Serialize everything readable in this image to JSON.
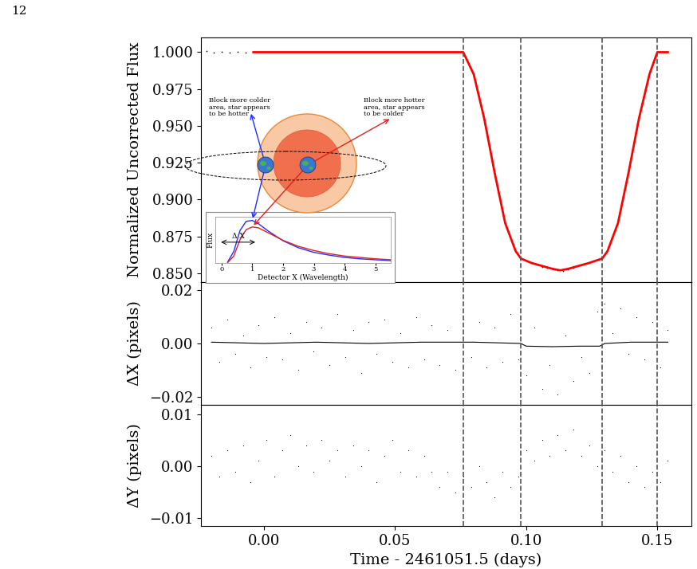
{
  "page_number": "12",
  "chart_data": [
    {
      "type": "line",
      "y_label": "Normalized Uncorrected Flux",
      "xlim": [
        -0.024,
        0.163
      ],
      "xticks": [
        {
          "value": 0.0,
          "label": "0.00"
        },
        {
          "value": 0.05,
          "label": "0.05"
        },
        {
          "value": 0.1,
          "label": "0.10"
        },
        {
          "value": 0.15,
          "label": "0.15"
        }
      ],
      "ylim": [
        0.844,
        1.01
      ],
      "yticks": [
        {
          "value": 0.85,
          "label": "0.850"
        },
        0.875,
        {
          "value": 0.9,
          "label": "0.900"
        },
        0.925,
        {
          "value": 0.95,
          "label": "0.950"
        },
        0.975,
        {
          "value": 1.0,
          "label": "1.000"
        }
      ],
      "tick_labels": "y",
      "transit_contacts": [
        0.076,
        0.098,
        0.129,
        0.15
      ],
      "series": [
        {
          "type": "scatter",
          "color": "#000000",
          "marker": "dot",
          "x": [
            -0.022,
            -0.019,
            -0.016,
            -0.013,
            -0.01,
            -0.007,
            -0.004,
            0.106,
            0.108,
            0.11,
            0.112,
            0.114,
            0.116,
            0.118
          ],
          "values": [
            1.0006,
            0.9997,
            1.0004,
            0.9995,
            1.0003,
            0.9998,
            1.0002,
            0.8545,
            0.8535,
            0.853,
            0.852,
            0.8518,
            0.8525,
            0.8535
          ]
        },
        {
          "type": "line",
          "color": "#ff0000",
          "line_style": "solid",
          "x": [
            -0.004,
            0.0,
            0.01,
            0.02,
            0.04,
            0.06,
            0.076,
            0.08,
            0.084,
            0.088,
            0.092,
            0.096,
            0.098,
            0.102,
            0.106,
            0.11,
            0.113,
            0.116,
            0.12,
            0.124,
            0.129,
            0.131,
            0.135,
            0.139,
            0.143,
            0.147,
            0.15,
            0.154
          ],
          "values": [
            1.0,
            1.0,
            1.0,
            1.0,
            1.0,
            1.0,
            1.0,
            0.985,
            0.955,
            0.918,
            0.884,
            0.865,
            0.86,
            0.857,
            0.855,
            0.853,
            0.852,
            0.853,
            0.855,
            0.857,
            0.86,
            0.865,
            0.884,
            0.918,
            0.955,
            0.985,
            1.0,
            1.0
          ]
        }
      ]
    },
    {
      "type": "scatter",
      "y_label": "ΔX (pixels)",
      "xlim": [
        -0.024,
        0.163
      ],
      "xticks": [
        {
          "value": 0.0,
          "label": "0.00"
        },
        {
          "value": 0.05,
          "label": "0.05"
        },
        {
          "value": 0.1,
          "label": "0.10"
        },
        {
          "value": 0.15,
          "label": "0.15"
        }
      ],
      "ylim": [
        -0.023,
        0.023
      ],
      "yticks": [
        {
          "value": -0.02,
          "label": "−0.02"
        },
        {
          "value": 0.0,
          "label": "0.00"
        },
        {
          "value": 0.02,
          "label": "0.02"
        }
      ],
      "tick_labels": "y",
      "transit_contacts": [
        0.076,
        0.098,
        0.129,
        0.15
      ],
      "series": [
        {
          "type": "scatter",
          "color": "#000000",
          "marker": "dot",
          "x": [
            -0.02,
            -0.017,
            -0.014,
            -0.011,
            -0.008,
            -0.005,
            -0.002,
            0.001,
            0.004,
            0.007,
            0.01,
            0.013,
            0.016,
            0.019,
            0.022,
            0.025,
            0.028,
            0.031,
            0.034,
            0.037,
            0.04,
            0.043,
            0.046,
            0.049,
            0.052,
            0.055,
            0.058,
            0.061,
            0.064,
            0.067,
            0.07,
            0.073,
            0.076,
            0.079,
            0.082,
            0.085,
            0.088,
            0.091,
            0.094,
            0.097,
            0.1,
            0.103,
            0.106,
            0.109,
            0.112,
            0.115,
            0.118,
            0.121,
            0.124,
            0.127,
            0.13,
            0.133,
            0.136,
            0.139,
            0.142,
            0.145,
            0.148,
            0.151,
            0.154
          ],
          "values": [
            0.006,
            -0.007,
            0.009,
            -0.004,
            0.003,
            -0.009,
            0.007,
            -0.005,
            0.01,
            -0.006,
            0.004,
            -0.01,
            0.008,
            -0.003,
            0.006,
            -0.008,
            0.011,
            -0.005,
            0.005,
            -0.011,
            0.008,
            -0.004,
            0.009,
            -0.007,
            0.004,
            -0.009,
            0.01,
            -0.006,
            0.007,
            -0.008,
            0.005,
            -0.01,
            0.009,
            -0.005,
            0.008,
            -0.009,
            0.006,
            -0.007,
            0.011,
            -0.006,
            -0.012,
            0.006,
            -0.017,
            -0.008,
            -0.019,
            0.003,
            -0.014,
            -0.005,
            -0.011,
            0.012,
            0.015,
            0.004,
            0.013,
            -0.004,
            0.01,
            -0.006,
            0.008,
            -0.009,
            0.005
          ]
        },
        {
          "type": "line",
          "color": "#000000",
          "line_style": "solid",
          "x": [
            -0.02,
            0.0,
            0.02,
            0.04,
            0.06,
            0.08,
            0.098,
            0.1,
            0.11,
            0.12,
            0.128,
            0.13,
            0.14,
            0.154
          ],
          "values": [
            0.0005,
            0.0,
            0.0005,
            0.0,
            0.0005,
            0.0005,
            0.0,
            -0.001,
            -0.0012,
            -0.001,
            -0.001,
            0.0,
            0.0005,
            0.0005
          ]
        }
      ]
    },
    {
      "type": "scatter",
      "y_label": "ΔY (pixels)",
      "x_label": "Time - 2461051.5 (days)",
      "xlim": [
        -0.024,
        0.163
      ],
      "xticks": [
        {
          "value": 0.0,
          "label": "0.00"
        },
        {
          "value": 0.05,
          "label": "0.05"
        },
        {
          "value": 0.1,
          "label": "0.10"
        },
        {
          "value": 0.15,
          "label": "0.15"
        }
      ],
      "ylim": [
        -0.0115,
        0.0118
      ],
      "yticks": [
        {
          "value": -0.01,
          "label": "−0.01"
        },
        {
          "value": 0.0,
          "label": "0.00"
        },
        {
          "value": 0.01,
          "label": "0.01"
        }
      ],
      "transit_contacts": [
        0.076,
        0.098,
        0.129,
        0.15
      ],
      "series": [
        {
          "type": "scatter",
          "color": "#000000",
          "marker": "dot",
          "x": [
            -0.02,
            -0.017,
            -0.014,
            -0.011,
            -0.008,
            -0.005,
            -0.002,
            0.001,
            0.004,
            0.007,
            0.01,
            0.013,
            0.016,
            0.019,
            0.022,
            0.025,
            0.028,
            0.031,
            0.034,
            0.037,
            0.04,
            0.043,
            0.046,
            0.049,
            0.052,
            0.055,
            0.058,
            0.061,
            0.064,
            0.067,
            0.07,
            0.073,
            0.076,
            0.079,
            0.082,
            0.085,
            0.088,
            0.091,
            0.094,
            0.097,
            0.1,
            0.103,
            0.106,
            0.109,
            0.112,
            0.115,
            0.118,
            0.121,
            0.124,
            0.127,
            0.13,
            0.133,
            0.136,
            0.139,
            0.142,
            0.145,
            0.148,
            0.151,
            0.154
          ],
          "values": [
            0.002,
            -0.002,
            0.003,
            -0.001,
            0.004,
            -0.003,
            0.001,
            0.005,
            -0.002,
            0.003,
            0.006,
            0.0,
            0.004,
            -0.001,
            0.005,
            0.001,
            0.003,
            -0.002,
            0.004,
            0.0,
            0.003,
            -0.003,
            0.002,
            0.005,
            -0.001,
            0.003,
            -0.002,
            0.002,
            -0.001,
            -0.004,
            -0.001,
            -0.005,
            -0.002,
            -0.004,
            0.0,
            -0.003,
            -0.006,
            -0.001,
            -0.004,
            -0.002,
            0.003,
            0.001,
            0.005,
            0.002,
            0.006,
            0.003,
            0.007,
            0.002,
            0.004,
            0.0,
            0.003,
            -0.001,
            0.002,
            -0.003,
            0.0,
            -0.004,
            -0.001,
            -0.003,
            0.001
          ]
        }
      ]
    }
  ],
  "inset": {
    "type": "line",
    "x_label": "Detector X (Wavelength)",
    "y_label": "Flux",
    "annotation": "Δ X",
    "xlim": [
      -0.2,
      5.5
    ],
    "xticks": [
      0,
      1,
      2,
      3,
      4,
      5
    ],
    "ylim": [
      0,
      1
    ],
    "tick_labels": "x",
    "series": [
      {
        "type": "line",
        "color": "#1f2fff",
        "x": [
          0.2,
          0.4,
          0.6,
          0.8,
          1.0,
          1.2,
          1.5,
          2.0,
          2.5,
          3.0,
          3.5,
          4.0,
          4.5,
          5.0,
          5.5
        ],
        "values": [
          0.02,
          0.25,
          0.7,
          0.9,
          0.92,
          0.85,
          0.7,
          0.48,
          0.33,
          0.23,
          0.17,
          0.12,
          0.09,
          0.07,
          0.05
        ]
      },
      {
        "type": "line",
        "color": "#e02020",
        "x": [
          0.2,
          0.4,
          0.6,
          0.8,
          1.0,
          1.2,
          1.5,
          2.0,
          2.5,
          3.0,
          3.5,
          4.0,
          4.5,
          5.0,
          5.5
        ],
        "values": [
          0.01,
          0.15,
          0.5,
          0.72,
          0.78,
          0.76,
          0.66,
          0.49,
          0.36,
          0.27,
          0.2,
          0.15,
          0.12,
          0.09,
          0.07
        ]
      }
    ]
  },
  "diagram": {
    "left_note": "Block more colder\narea, star appears\nto be hotter",
    "right_note": "Block more hotter\narea, star appears\nto be colder"
  }
}
